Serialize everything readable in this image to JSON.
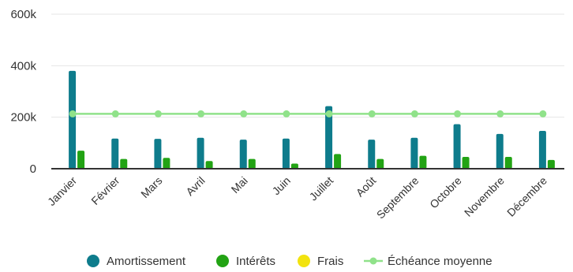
{
  "chart_data": {
    "type": "bar",
    "title": "",
    "xlabel": "",
    "ylabel": "",
    "ylim": [
      0,
      600000
    ],
    "y_ticks": [
      {
        "value": 0,
        "label": "0"
      },
      {
        "value": 200000,
        "label": "200k"
      },
      {
        "value": 400000,
        "label": "400k"
      },
      {
        "value": 600000,
        "label": "600k"
      }
    ],
    "grid": true,
    "legend_position": "bottom",
    "categories": [
      "Janvier",
      "Février",
      "Mars",
      "Avril",
      "Mai",
      "Juin",
      "Juillet",
      "Août",
      "Septembre",
      "Octobre",
      "Novembre",
      "Décembre"
    ],
    "series": [
      {
        "name": "Amortissement",
        "kind": "bar",
        "color": "#0e7c8c",
        "values": [
          380000,
          117000,
          116000,
          120000,
          113000,
          117000,
          243000,
          113000,
          120000,
          173000,
          135000,
          147000
        ]
      },
      {
        "name": "Intérêts",
        "kind": "bar",
        "color": "#22a314",
        "values": [
          70000,
          38000,
          42000,
          30000,
          38000,
          20000,
          57000,
          38000,
          50000,
          46000,
          46000,
          34000
        ]
      },
      {
        "name": "Frais",
        "kind": "bar",
        "color": "#f2e30f",
        "values": [
          0,
          0,
          0,
          0,
          0,
          0,
          0,
          0,
          0,
          0,
          0,
          0
        ]
      },
      {
        "name": "Échéance moyenne",
        "kind": "line",
        "color": "#90e28a",
        "values": [
          213000,
          213000,
          213000,
          213000,
          213000,
          213000,
          213000,
          213000,
          213000,
          213000,
          213000,
          213000
        ]
      }
    ]
  }
}
